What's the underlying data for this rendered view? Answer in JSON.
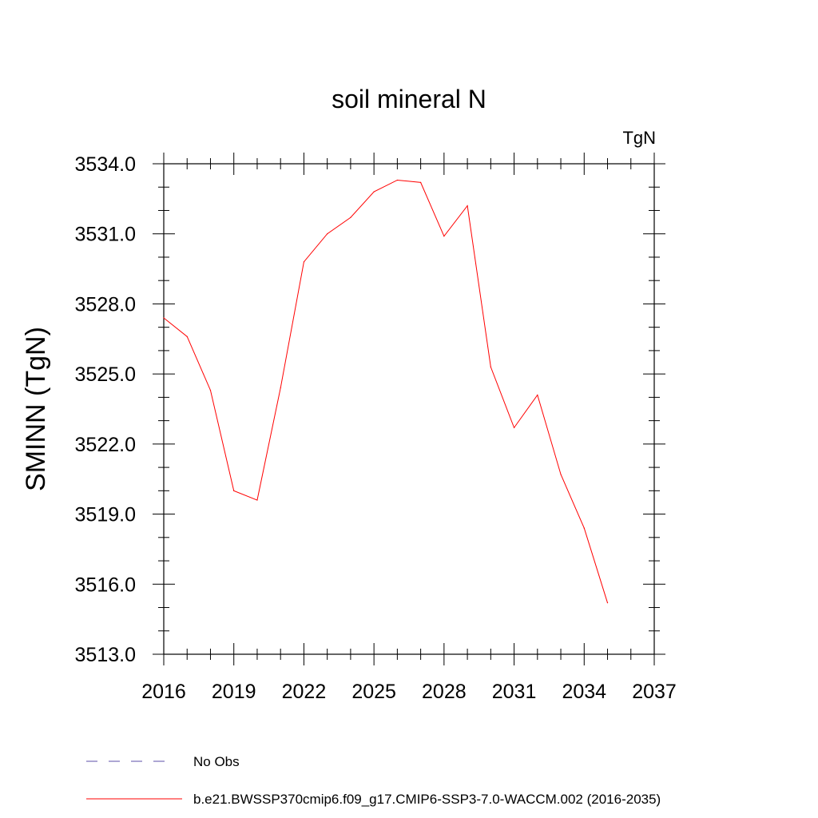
{
  "chart_data": {
    "type": "line",
    "title": "soil mineral N",
    "units_label": "TgN",
    "xlabel": "",
    "ylabel": "SMINN  (TgN)",
    "xlim": [
      2016,
      2037
    ],
    "ylim": [
      3513.0,
      3534.0
    ],
    "x_ticks": [
      2016,
      2019,
      2022,
      2025,
      2028,
      2031,
      2034,
      2037
    ],
    "x_tick_labels": [
      "2016",
      "2019",
      "2022",
      "2025",
      "2028",
      "2031",
      "2034",
      "2037"
    ],
    "y_ticks": [
      3513.0,
      3516.0,
      3519.0,
      3522.0,
      3525.0,
      3528.0,
      3531.0,
      3534.0
    ],
    "y_tick_labels": [
      "3513.0",
      "3516.0",
      "3519.0",
      "3522.0",
      "3525.0",
      "3528.0",
      "3531.0",
      "3534.0"
    ],
    "grid": false,
    "legend_position": "bottom",
    "series": [
      {
        "name": "b.e21.BWSSP370cmip6.f09_g17.CMIP6-SSP3-7.0-WACCM.002 (2016-2035)",
        "color": "#ff0000",
        "style": "solid",
        "x": [
          2016,
          2017,
          2018,
          2019,
          2020,
          2021,
          2022,
          2023,
          2024,
          2025,
          2026,
          2027,
          2028,
          2029,
          2030,
          2031,
          2032,
          2033,
          2034,
          2035
        ],
        "values": [
          3527.4,
          3526.6,
          3524.3,
          3520.0,
          3519.6,
          3524.4,
          3529.8,
          3531.0,
          3531.7,
          3532.8,
          3533.3,
          3533.2,
          3530.9,
          3532.2,
          3525.3,
          3522.7,
          3524.1,
          3520.7,
          3518.4,
          3515.2
        ]
      }
    ],
    "legend": [
      {
        "label": "No Obs",
        "color": "#5b4fa8",
        "style": "dashed"
      },
      {
        "label": "b.e21.BWSSP370cmip6.f09_g17.CMIP6-SSP3-7.0-WACCM.002 (2016-2035)",
        "color": "#ff0000",
        "style": "solid"
      }
    ]
  }
}
